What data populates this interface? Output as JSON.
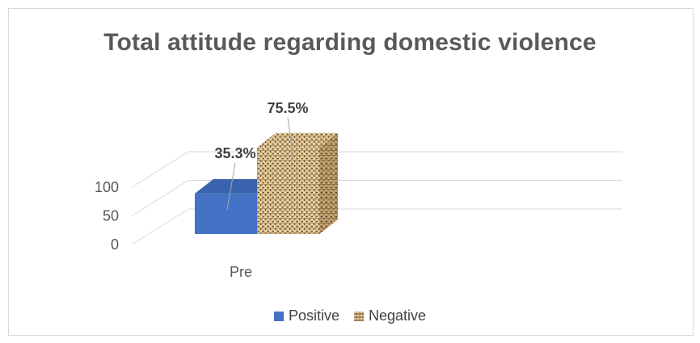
{
  "chart_data": {
    "type": "bar",
    "title": "Total attitude regarding domestic violence",
    "categories": [
      "Pre"
    ],
    "series": [
      {
        "name": "Positive",
        "values": [
          35.3
        ],
        "label": "35.3%",
        "color": "#4472c4",
        "fill": "solid"
      },
      {
        "name": "Negative",
        "values": [
          75.5
        ],
        "label": "75.5%",
        "color": "#c9ae7c",
        "fill": "woven-texture"
      }
    ],
    "yticks": [
      "0",
      "50",
      "100"
    ],
    "ylim": [
      0,
      100
    ],
    "grid": true,
    "legend_position": "bottom",
    "style": "3d-clustered-column"
  }
}
